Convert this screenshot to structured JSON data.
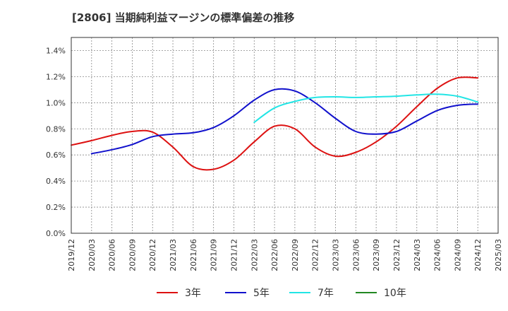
{
  "chart_data": {
    "type": "line",
    "title": "[2806]  当期純利益マージンの標準偏差の推移",
    "xlabel": "",
    "ylabel": "",
    "x_ticks": [
      "2019/12",
      "2020/03",
      "2020/06",
      "2020/09",
      "2020/12",
      "2021/03",
      "2021/06",
      "2021/09",
      "2021/12",
      "2022/03",
      "2022/06",
      "2022/09",
      "2022/12",
      "2023/03",
      "2023/06",
      "2023/09",
      "2023/12",
      "2024/03",
      "2024/06",
      "2024/09",
      "2024/12",
      "2025/03"
    ],
    "y_ticks": [
      "0.0%",
      "0.2%",
      "0.4%",
      "0.6%",
      "0.8%",
      "1.0%",
      "1.2%",
      "1.4%"
    ],
    "ylim": [
      0,
      1.5
    ],
    "grid": true,
    "legend_position": "bottom",
    "series": [
      {
        "name": "3年",
        "color": "#dd1111",
        "points": [
          [
            "2019/12",
            0.675
          ],
          [
            "2020/03",
            0.71
          ],
          [
            "2020/06",
            0.75
          ],
          [
            "2020/09",
            0.78
          ],
          [
            "2020/12",
            0.775
          ],
          [
            "2021/03",
            0.66
          ],
          [
            "2021/06",
            0.51
          ],
          [
            "2021/09",
            0.49
          ],
          [
            "2021/12",
            0.56
          ],
          [
            "2022/03",
            0.7
          ],
          [
            "2022/06",
            0.82
          ],
          [
            "2022/09",
            0.8
          ],
          [
            "2022/12",
            0.66
          ],
          [
            "2023/03",
            0.59
          ],
          [
            "2023/06",
            0.62
          ],
          [
            "2023/09",
            0.7
          ],
          [
            "2023/12",
            0.82
          ],
          [
            "2024/03",
            0.97
          ],
          [
            "2024/06",
            1.11
          ],
          [
            "2024/09",
            1.19
          ],
          [
            "2024/12",
            1.19
          ]
        ]
      },
      {
        "name": "5年",
        "color": "#1111cc",
        "points": [
          [
            "2020/03",
            0.61
          ],
          [
            "2020/06",
            0.64
          ],
          [
            "2020/09",
            0.68
          ],
          [
            "2020/12",
            0.74
          ],
          [
            "2021/03",
            0.76
          ],
          [
            "2021/06",
            0.77
          ],
          [
            "2021/09",
            0.81
          ],
          [
            "2021/12",
            0.9
          ],
          [
            "2022/03",
            1.02
          ],
          [
            "2022/06",
            1.1
          ],
          [
            "2022/09",
            1.09
          ],
          [
            "2022/12",
            1.0
          ],
          [
            "2023/03",
            0.88
          ],
          [
            "2023/06",
            0.78
          ],
          [
            "2023/09",
            0.76
          ],
          [
            "2023/12",
            0.78
          ],
          [
            "2024/03",
            0.86
          ],
          [
            "2024/06",
            0.94
          ],
          [
            "2024/09",
            0.98
          ],
          [
            "2024/12",
            0.99
          ]
        ]
      },
      {
        "name": "7年",
        "color": "#22e5e5",
        "points": [
          [
            "2022/03",
            0.85
          ],
          [
            "2022/06",
            0.96
          ],
          [
            "2022/09",
            1.01
          ],
          [
            "2022/12",
            1.04
          ],
          [
            "2023/03",
            1.045
          ],
          [
            "2023/06",
            1.04
          ],
          [
            "2023/09",
            1.045
          ],
          [
            "2023/12",
            1.05
          ],
          [
            "2024/03",
            1.06
          ],
          [
            "2024/06",
            1.065
          ],
          [
            "2024/09",
            1.05
          ],
          [
            "2024/12",
            1.005
          ]
        ]
      },
      {
        "name": "10年",
        "color": "#228822",
        "points": []
      }
    ]
  }
}
